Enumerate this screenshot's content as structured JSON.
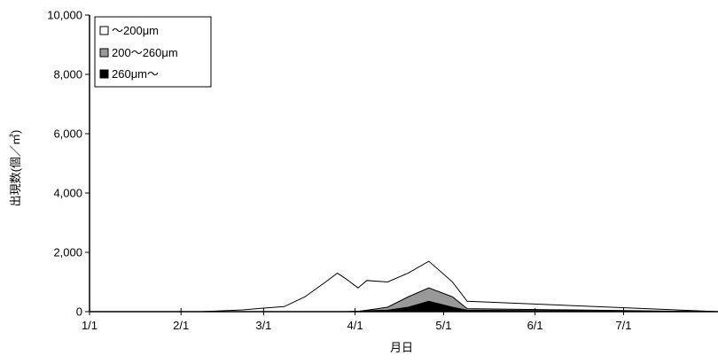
{
  "chart_data": {
    "type": "area",
    "xlabel": "月日",
    "ylabel": "出現数(個／㎥)",
    "ylim": [
      0,
      10000
    ],
    "xlim": [
      0,
      213
    ],
    "x_ticks": [
      {
        "label": "1/1",
        "x": 0
      },
      {
        "label": "2/1",
        "x": 31
      },
      {
        "label": "3/1",
        "x": 59
      },
      {
        "label": "4/1",
        "x": 90
      },
      {
        "label": "5/1",
        "x": 120
      },
      {
        "label": "6/1",
        "x": 151
      },
      {
        "label": "7/1",
        "x": 181
      }
    ],
    "y_ticks": [
      {
        "label": "0",
        "y": 0
      },
      {
        "label": "2,000",
        "y": 2000
      },
      {
        "label": "4,000",
        "y": 4000
      },
      {
        "label": "6,000",
        "y": 6000
      },
      {
        "label": "8,000",
        "y": 8000
      },
      {
        "label": "10,000",
        "y": 10000
      }
    ],
    "x": [
      0,
      31,
      38,
      45,
      52,
      59,
      66,
      73,
      80,
      84,
      87,
      91,
      94,
      101,
      108,
      115,
      123,
      128,
      213
    ],
    "series": [
      {
        "name": "～200μm",
        "color": "#ffffff",
        "values": [
          0,
          0,
          0,
          30,
          60,
          120,
          170,
          500,
          1000,
          1300,
          1100,
          800,
          1050,
          1000,
          1300,
          1700,
          1000,
          350,
          0
        ]
      },
      {
        "name": "200～260μm",
        "color": "#999999",
        "values": [
          0,
          0,
          0,
          0,
          0,
          0,
          0,
          0,
          0,
          0,
          0,
          10,
          50,
          150,
          500,
          800,
          500,
          100,
          0
        ]
      },
      {
        "name": "260μm～",
        "color": "#000000",
        "values": [
          0,
          0,
          0,
          0,
          0,
          0,
          0,
          0,
          0,
          0,
          0,
          10,
          30,
          50,
          150,
          350,
          150,
          50,
          0
        ]
      }
    ],
    "legend": {
      "position": "top-left",
      "labels": [
        "～200μm",
        "200～260μm",
        "260μm～"
      ]
    },
    "grid": false
  }
}
